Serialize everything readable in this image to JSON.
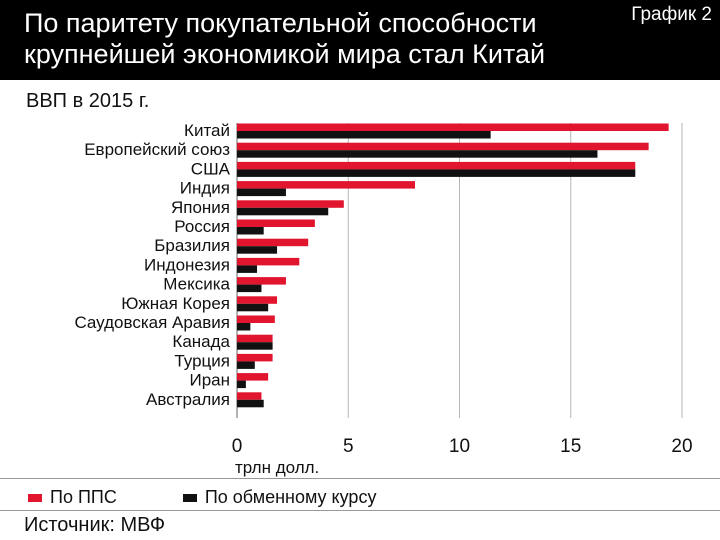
{
  "header": {
    "title": "По паритету покупательной способности крупнейшей экономикой мира стал Китай",
    "tag": "График 2"
  },
  "subtitle": "ВВП в 2015 г.",
  "unit_label": "трлн долл.",
  "legend": {
    "ppp": "По ППС",
    "fx": "По обменному курсу"
  },
  "source": "Источник: МВФ",
  "colors": {
    "ppp": "#e1162e",
    "fx": "#111111",
    "grid": "#b5b5b5",
    "header_bg": "#000000"
  },
  "chart_data": {
    "type": "bar",
    "orientation": "horizontal",
    "title": "ВВП в 2015 г.",
    "xlabel": "трлн долл.",
    "xlim": [
      0,
      20
    ],
    "xticks": [
      0,
      5,
      10,
      15,
      20
    ],
    "categories": [
      "Китай",
      "Европейский союз",
      "США",
      "Индия",
      "Япония",
      "Россия",
      "Бразилия",
      "Индонезия",
      "Мексика",
      "Южная Корея",
      "Саудовская Аравия",
      "Канада",
      "Турция",
      "Иран",
      "Австралия"
    ],
    "series": [
      {
        "name": "По ППС",
        "values": [
          19.4,
          18.5,
          17.9,
          8.0,
          4.8,
          3.5,
          3.2,
          2.8,
          2.2,
          1.8,
          1.7,
          1.6,
          1.6,
          1.4,
          1.1
        ]
      },
      {
        "name": "По обменному курсу",
        "values": [
          11.4,
          16.2,
          17.9,
          2.2,
          4.1,
          1.2,
          1.8,
          0.9,
          1.1,
          1.4,
          0.6,
          1.6,
          0.8,
          0.4,
          1.2
        ]
      }
    ],
    "legend_position": "bottom",
    "grid": true
  }
}
